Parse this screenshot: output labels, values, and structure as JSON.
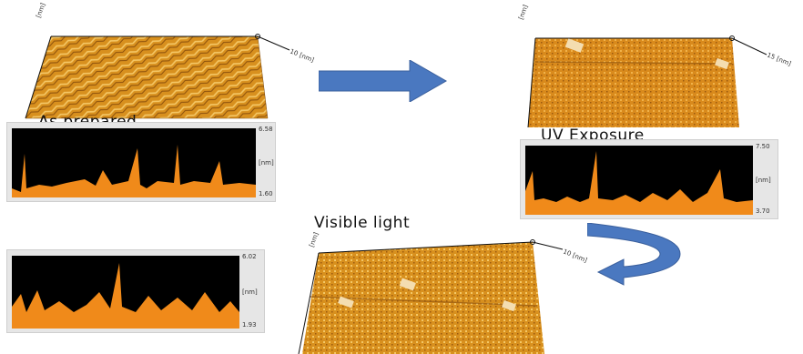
{
  "panels": {
    "as_prepared": {
      "caption": "As prepared",
      "profile_max": "6.58",
      "profile_min": "1.60",
      "profile_unit": "[nm]",
      "axis_x_unit": "10 [nm]",
      "axis_y_unit": "[nm]"
    },
    "uv_exposure": {
      "caption": "UV Exposure",
      "profile_max": "7.50",
      "profile_min": "3.70",
      "profile_unit": "[nm]",
      "axis_x_unit": "15 [nm]",
      "axis_y_unit": "[nm]"
    },
    "visible_light": {
      "caption": "Visible light",
      "profile_max": "6.02",
      "profile_min": "1.93",
      "profile_unit": "[nm]",
      "axis_x_unit": "10 [nm]",
      "axis_y_unit": "[nm]"
    }
  },
  "colors": {
    "afm_surface": "#d8901e",
    "profile_fill": "#f08a1a",
    "arrow": "#4a78c0"
  }
}
